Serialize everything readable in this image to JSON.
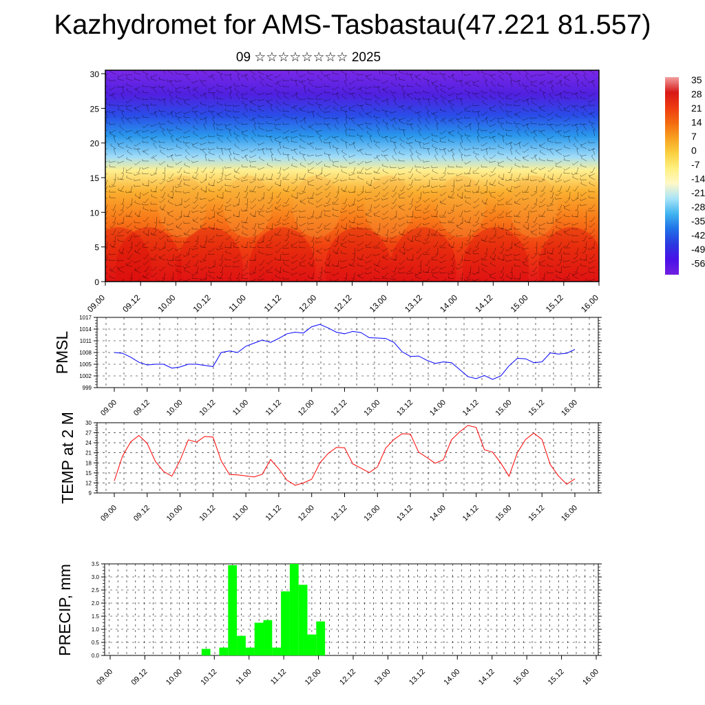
{
  "header": {
    "title": "Kazhydromet for AMS-Tasbastau(47.221 81.557)",
    "subtitle": "09 ☆☆☆☆☆☆☆☆ 2025"
  },
  "chart_data": [
    {
      "type": "heatmap",
      "name": "upper-air",
      "x_tick_labels": [
        "09.00",
        "09.12",
        "10.00",
        "10.12",
        "11.00",
        "11.12",
        "12.00",
        "12.12",
        "13.00",
        "13.12",
        "14.00",
        "14.12",
        "15.00",
        "15.12",
        "16.00"
      ],
      "y_ticks": [
        0,
        5,
        10,
        15,
        20,
        25,
        30
      ],
      "ylim": [
        0,
        30.5
      ],
      "colorbar_labels": [
        "35",
        "28",
        "21",
        "14",
        "7",
        "0",
        "-7",
        "-14",
        "-21",
        "-28",
        "-35",
        "-42",
        "-49",
        "-56"
      ],
      "colorbar_colors": [
        "#f2a0a0",
        "#d81818",
        "#ee3a10",
        "#f46a10",
        "#f8a020",
        "#fad040",
        "#fff080",
        "#fff8c8",
        "#a8e4f8",
        "#40b4f0",
        "#2070e8",
        "#2a38e0",
        "#4a10e8",
        "#7020e0"
      ],
      "vertical_profile": [
        {
          "h": 0,
          "temp": 28,
          "color": "#e41818"
        },
        {
          "h": 5,
          "temp": 21,
          "color": "#f04010"
        },
        {
          "h": 9,
          "temp": 14,
          "color": "#f87818"
        },
        {
          "h": 13,
          "temp": 7,
          "color": "#fab030"
        },
        {
          "h": 16,
          "temp": -7,
          "color": "#fff090"
        },
        {
          "h": 18,
          "temp": -21,
          "color": "#a0dcf8"
        },
        {
          "h": 21,
          "temp": -35,
          "color": "#2a98ec"
        },
        {
          "h": 24,
          "temp": -42,
          "color": "#2a4ce8"
        },
        {
          "h": 27,
          "temp": -49,
          "color": "#5020e0"
        },
        {
          "h": 30.5,
          "temp": -56,
          "color": "#7a28e8"
        }
      ]
    },
    {
      "type": "line",
      "name": "PMSL",
      "ylabel": "PMSL",
      "ylim": [
        999,
        1017
      ],
      "y_ticks": [
        999,
        1002,
        1005,
        1008,
        1011,
        1014,
        1017
      ],
      "x_tick_labels": [
        "09.00",
        "09.12",
        "10.00",
        "10.12",
        "11.00",
        "11.12",
        "12.00",
        "12.12",
        "13.00",
        "13.12",
        "14.00",
        "14.12",
        "15.00",
        "15.12",
        "16.00"
      ],
      "color": "#0000ff",
      "values": [
        1008.0,
        1007.8,
        1006.8,
        1005.5,
        1004.8,
        1005.0,
        1005.0,
        1004.0,
        1004.3,
        1005.0,
        1005.0,
        1004.7,
        1004.4,
        1008.0,
        1008.4,
        1008.0,
        1009.6,
        1010.4,
        1011.2,
        1010.6,
        1011.6,
        1012.8,
        1013.2,
        1013.0,
        1014.6,
        1015.2,
        1014.3,
        1013.2,
        1012.8,
        1013.4,
        1013.1,
        1011.8,
        1011.7,
        1011.6,
        1010.6,
        1008.2,
        1007.0,
        1007.1,
        1006.0,
        1005.2,
        1005.6,
        1005.4,
        1003.6,
        1001.8,
        1001.3,
        1002.1,
        1001.1,
        1002.0,
        1004.6,
        1006.5,
        1006.4,
        1005.4,
        1005.6,
        1007.9,
        1007.6,
        1007.8,
        1008.8
      ]
    },
    {
      "type": "line",
      "name": "TEMP at 2 M",
      "ylabel": "TEMP at 2 M",
      "ylim": [
        9,
        30
      ],
      "y_ticks": [
        9,
        12,
        15,
        18,
        21,
        24,
        27,
        30
      ],
      "x_tick_labels": [
        "09.00",
        "09.12",
        "10.00",
        "10.12",
        "11.00",
        "11.12",
        "12.00",
        "12.12",
        "13.00",
        "13.12",
        "14.00",
        "14.12",
        "15.00",
        "15.12",
        "16.00"
      ],
      "color": "#ff0000",
      "values": [
        12.6,
        20.0,
        24.3,
        26.2,
        23.8,
        18.4,
        15.4,
        14.0,
        18.8,
        24.9,
        24.2,
        25.9,
        25.7,
        18.6,
        14.5,
        14.4,
        14.1,
        13.8,
        14.6,
        19.0,
        16.2,
        12.8,
        11.3,
        12.0,
        13.1,
        18.0,
        20.8,
        22.6,
        22.5,
        17.7,
        16.4,
        15.1,
        16.8,
        22.4,
        25.0,
        26.7,
        26.6,
        21.2,
        19.6,
        17.9,
        18.9,
        24.9,
        27.3,
        29.2,
        28.6,
        21.9,
        21.2,
        17.9,
        14.0,
        21.0,
        25.0,
        26.9,
        25.0,
        17.5,
        14.1,
        11.6,
        13.2
      ]
    },
    {
      "type": "bar",
      "name": "PRECIP",
      "ylabel": "PRECIP, mm",
      "ylim": [
        0,
        3.5
      ],
      "y_ticks": [
        0,
        0.5,
        1,
        1.5,
        2,
        2.5,
        3,
        3.5
      ],
      "y_tick_labels": [
        "0.0",
        "0.5",
        "1.0",
        "1.5",
        "2.0",
        "2.5",
        "3.0",
        "3.5"
      ],
      "x_tick_labels": [
        "09.00",
        "09.12",
        "10.00",
        "10.12",
        "11.00",
        "11.12",
        "12.00",
        "12.12",
        "13.00",
        "13.12",
        "14.00",
        "14.12",
        "15.00",
        "15.12",
        "16.00"
      ],
      "color": "#00ff00",
      "values": [
        0,
        0,
        0,
        0,
        0,
        0,
        0,
        0,
        0,
        0,
        0,
        0.25,
        0,
        0.3,
        3.45,
        0.75,
        0.3,
        1.25,
        1.35,
        0.3,
        2.45,
        3.5,
        2.7,
        0.8,
        1.3,
        0,
        0,
        0,
        0,
        0,
        0,
        0,
        0,
        0,
        0,
        0,
        0,
        0,
        0,
        0,
        0,
        0,
        0,
        0,
        0,
        0,
        0,
        0,
        0,
        0,
        0,
        0,
        0,
        0,
        0,
        0
      ]
    }
  ]
}
